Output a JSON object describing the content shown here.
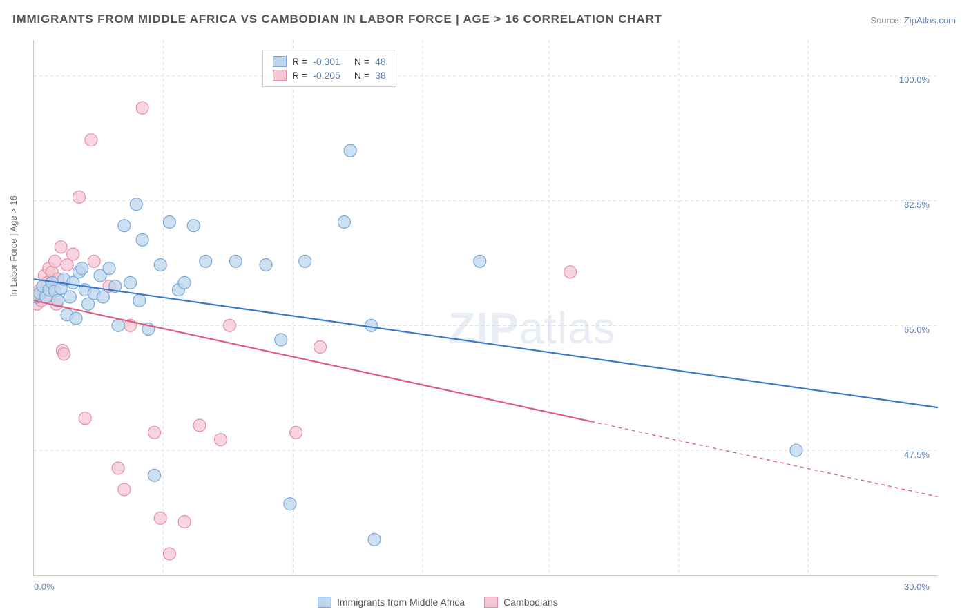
{
  "title": "IMMIGRANTS FROM MIDDLE AFRICA VS CAMBODIAN IN LABOR FORCE | AGE > 16 CORRELATION CHART",
  "source_label": "Source:",
  "source_value": "ZipAtlas.com",
  "y_axis_title": "In Labor Force | Age > 16",
  "watermark_text_a": "ZIP",
  "watermark_text_b": "atlas",
  "chart": {
    "type": "scatter-with-trend",
    "background_color": "#ffffff",
    "grid_color": "#d8d8d8",
    "border_color": "#c8c8c8",
    "xlim": [
      0,
      30
    ],
    "ylim": [
      30,
      105
    ],
    "x_ticks": [
      0,
      30
    ],
    "x_tick_labels": [
      "0.0%",
      "30.0%"
    ],
    "x_minor_ticks": [
      4.3,
      8.6,
      12.9,
      17.1,
      21.4,
      25.7
    ],
    "y_ticks": [
      47.5,
      65.0,
      82.5,
      100.0
    ],
    "y_tick_labels": [
      "47.5%",
      "65.0%",
      "82.5%",
      "100.0%"
    ],
    "label_color": "#5a7fb0",
    "label_fontsize": 13,
    "title_fontsize": 17,
    "title_color": "#555555",
    "marker_radius": 9,
    "marker_stroke_width": 1.2,
    "trend_line_width": 2.2,
    "series": [
      {
        "name": "Immigrants from Middle Africa",
        "fill_color": "#bcd5ee",
        "stroke_color": "#7aa7d6",
        "line_color": "#3a78c9",
        "r_value": "-0.301",
        "n_value": "48",
        "trend_start": [
          0,
          71.5
        ],
        "trend_end": [
          30,
          53.5
        ],
        "trend_dash_from_x": 30,
        "points": [
          [
            0.1,
            69.0
          ],
          [
            0.2,
            69.5
          ],
          [
            0.3,
            70.5
          ],
          [
            0.4,
            69.0
          ],
          [
            0.5,
            70.0
          ],
          [
            0.6,
            71.0
          ],
          [
            0.7,
            69.8
          ],
          [
            0.8,
            68.5
          ],
          [
            0.9,
            70.2
          ],
          [
            1.0,
            71.5
          ],
          [
            1.1,
            66.5
          ],
          [
            1.2,
            69.0
          ],
          [
            1.3,
            71.0
          ],
          [
            1.4,
            66.0
          ],
          [
            1.5,
            72.5
          ],
          [
            1.6,
            73.0
          ],
          [
            1.7,
            70.0
          ],
          [
            1.8,
            68.0
          ],
          [
            2.0,
            69.5
          ],
          [
            2.2,
            72.0
          ],
          [
            2.3,
            69.0
          ],
          [
            2.5,
            73.0
          ],
          [
            2.7,
            70.5
          ],
          [
            2.8,
            65.0
          ],
          [
            3.0,
            79.0
          ],
          [
            3.2,
            71.0
          ],
          [
            3.4,
            82.0
          ],
          [
            3.5,
            68.5
          ],
          [
            3.6,
            77.0
          ],
          [
            3.8,
            64.5
          ],
          [
            4.0,
            44.0
          ],
          [
            4.2,
            73.5
          ],
          [
            4.5,
            79.5
          ],
          [
            4.8,
            70.0
          ],
          [
            5.0,
            71.0
          ],
          [
            5.3,
            79.0
          ],
          [
            5.7,
            74.0
          ],
          [
            6.7,
            74.0
          ],
          [
            7.7,
            73.5
          ],
          [
            8.2,
            63.0
          ],
          [
            8.5,
            40.0
          ],
          [
            9.0,
            74.0
          ],
          [
            10.3,
            79.5
          ],
          [
            10.5,
            89.5
          ],
          [
            11.2,
            65.0
          ],
          [
            11.3,
            35.0
          ],
          [
            14.8,
            74.0
          ],
          [
            25.3,
            47.5
          ]
        ]
      },
      {
        "name": "Cambodians",
        "fill_color": "#f5c6d3",
        "stroke_color": "#e38fa6",
        "line_color": "#e15a7d",
        "r_value": "-0.205",
        "n_value": "38",
        "trend_start": [
          0,
          68.5
        ],
        "trend_end": [
          30,
          41.0
        ],
        "trend_dash_from_x": 18.5,
        "points": [
          [
            0.1,
            68.0
          ],
          [
            0.15,
            69.0
          ],
          [
            0.2,
            70.0
          ],
          [
            0.25,
            68.5
          ],
          [
            0.3,
            70.5
          ],
          [
            0.35,
            72.0
          ],
          [
            0.4,
            69.0
          ],
          [
            0.45,
            71.0
          ],
          [
            0.5,
            73.0
          ],
          [
            0.55,
            70.0
          ],
          [
            0.6,
            72.5
          ],
          [
            0.7,
            74.0
          ],
          [
            0.75,
            68.0
          ],
          [
            0.8,
            71.5
          ],
          [
            0.9,
            76.0
          ],
          [
            0.95,
            61.5
          ],
          [
            1.0,
            61.0
          ],
          [
            1.1,
            73.5
          ],
          [
            1.3,
            75.0
          ],
          [
            1.5,
            83.0
          ],
          [
            1.7,
            52.0
          ],
          [
            1.9,
            91.0
          ],
          [
            2.0,
            74.0
          ],
          [
            2.5,
            70.5
          ],
          [
            2.8,
            45.0
          ],
          [
            3.0,
            42.0
          ],
          [
            3.2,
            65.0
          ],
          [
            3.6,
            95.5
          ],
          [
            4.0,
            50.0
          ],
          [
            4.2,
            38.0
          ],
          [
            4.5,
            33.0
          ],
          [
            5.0,
            37.5
          ],
          [
            5.5,
            51.0
          ],
          [
            6.2,
            49.0
          ],
          [
            6.5,
            65.0
          ],
          [
            8.7,
            50.0
          ],
          [
            9.5,
            62.0
          ],
          [
            17.8,
            72.5
          ]
        ]
      }
    ]
  }
}
